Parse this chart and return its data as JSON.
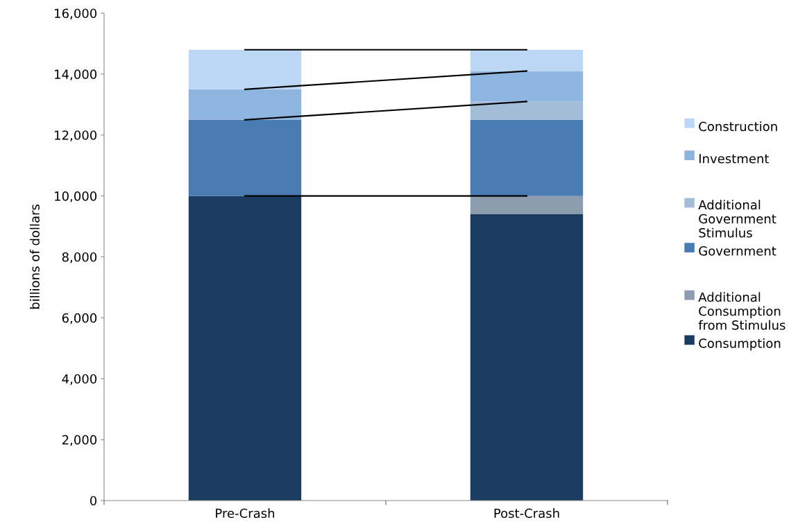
{
  "chart_data": {
    "type": "bar",
    "stacked": true,
    "ylabel": "billions of dollars",
    "categories": [
      "Pre-Crash",
      "Post-Crash"
    ],
    "series": [
      {
        "name": "Consumption",
        "color": "#1a3c61",
        "values": [
          10000,
          9400
        ]
      },
      {
        "name": "Additional Consumption from Stimulus",
        "color": "#8c9db0",
        "values": [
          null,
          600
        ]
      },
      {
        "name": "Government",
        "color": "#487bb2",
        "values": [
          2500,
          2500
        ]
      },
      {
        "name": "Additional Government Stimulus",
        "color": "#a3bdd8",
        "values": [
          null,
          600
        ]
      },
      {
        "name": "Investment",
        "color": "#8db5e0",
        "values": [
          1000,
          1000
        ]
      },
      {
        "name": "Construction",
        "color": "#bcd8f5",
        "values": [
          1300,
          700
        ]
      },
      {
        "type": "line",
        "x": [
          "Pre-Crash",
          "Post-Crash"
        ],
        "color": "#000000",
        "values": [
          14800,
          14800
        ]
      },
      {
        "type": "line",
        "x": [
          "Pre-Crash",
          "Post-Crash"
        ],
        "color": "#000000",
        "values": [
          13500,
          14100
        ]
      },
      {
        "type": "line",
        "x": [
          "Pre-Crash",
          "Post-Crash"
        ],
        "color": "#000000",
        "values": [
          12500,
          13100
        ]
      },
      {
        "type": "line",
        "x": [
          "Pre-Crash",
          "Post-Crash"
        ],
        "color": "#000000",
        "values": [
          10000,
          10000
        ]
      }
    ],
    "ylim": [
      0,
      16000
    ],
    "yticks": [
      {
        "value": 0,
        "label": "0"
      },
      {
        "value": 2000,
        "label": "2,000"
      },
      {
        "value": 4000,
        "label": "4,000"
      },
      {
        "value": 6000,
        "label": "6,000"
      },
      {
        "value": 8000,
        "label": "8,000"
      },
      {
        "value": 10000,
        "label": "10,000"
      },
      {
        "value": 12000,
        "label": "12,000"
      },
      {
        "value": 14000,
        "label": "14,000"
      },
      {
        "value": 16000,
        "label": "16,000"
      }
    ],
    "grid": false,
    "legend": "right"
  }
}
